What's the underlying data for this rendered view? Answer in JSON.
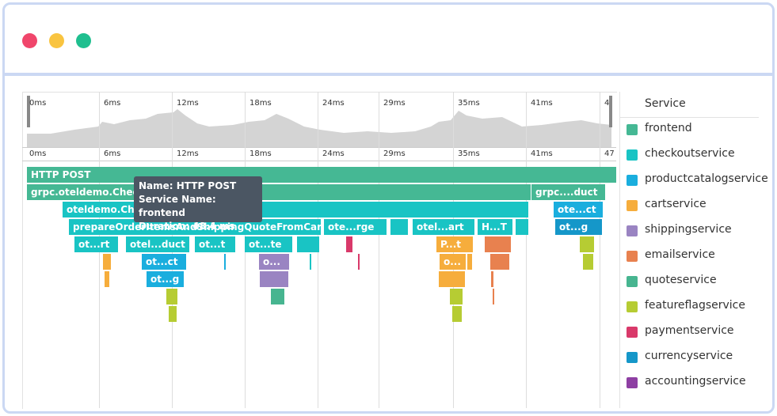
{
  "timeline": {
    "minimap_ticks": [
      "0ms",
      "6ms",
      "12ms",
      "18ms",
      "24ms",
      "29ms",
      "35ms",
      "41ms",
      "4"
    ],
    "main_ticks": [
      "0ms",
      "6ms",
      "12ms",
      "18ms",
      "24ms",
      "29ms",
      "35ms",
      "41ms",
      "47"
    ]
  },
  "spans": [
    "HTTP POST",
    "grpc.oteldemo.Check",
    "grpc....duct",
    "oteldemo.Chec",
    "ote...ct",
    "prepareOrderItemsAndShippingQuoteFromCart",
    "ote...rge",
    "otel...art",
    "H...T",
    "ot...g",
    "ot...rt",
    "otel...duct",
    "ot...t",
    "ot...te",
    "P...t",
    "ot...ct",
    "o...",
    "o...",
    "ot...g"
  ],
  "tooltip": [
    "Name: HTTP POST",
    "Service Name: frontend",
    "Duration: 48.4 ms"
  ],
  "legend": {
    "title": "Service",
    "items": [
      "frontend",
      "checkoutservice",
      "productcatalogservice",
      "cartservice",
      "shippingservice",
      "emailservice",
      "quoteservice",
      "featureflagservice",
      "paymentservice",
      "currencyservice",
      "accountingservice"
    ]
  }
}
